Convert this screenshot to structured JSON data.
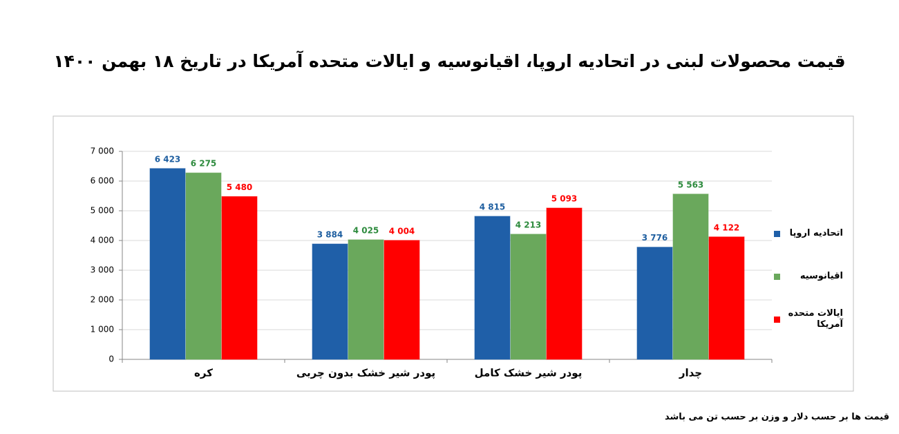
{
  "chart_data": {
    "type": "bar",
    "title": "قیمت محصولات لبنی در اتحادیه اروپا، اقیانوسیه و ایالات متحده آمریکا در تاریخ ۱۸ بهمن ۱۴۰۰",
    "footnote": "قیمت ها بر حسب دلار و وزن بر حسب تن می باشد",
    "categories": [
      "کره",
      "پودر شیر خشک بدون چربی",
      "پودر شیر خشک کامل",
      "چدار"
    ],
    "series": [
      {
        "name": "اتحادیه اروپا",
        "color": "#1f5fa8",
        "label_color": "#1f5fa0",
        "values": [
          6423,
          3884,
          4815,
          3776
        ],
        "value_labels": [
          "6 423",
          "3 884",
          "4 815",
          "3 776"
        ]
      },
      {
        "name": "اقیانوسیه",
        "color": "#6aa85c",
        "label_color": "#2e8b3e",
        "values": [
          6275,
          4025,
          4213,
          5563
        ],
        "value_labels": [
          "6 275",
          "4 025",
          "4 213",
          "5 563"
        ]
      },
      {
        "name": "ایالات متحده آمریکا",
        "color": "#ff0000",
        "label_color": "#ff0000",
        "values": [
          5480,
          4004,
          5093,
          4122
        ],
        "value_labels": [
          "5 480",
          "4 004",
          "5 093",
          "4 122"
        ]
      }
    ],
    "ylim": [
      0,
      7000
    ],
    "yticks": [
      0,
      {
        "value": 1000,
        "label": "1 000"
      },
      {
        "value": 2000,
        "label": "2 000"
      },
      {
        "value": 3000,
        "label": "3 000"
      },
      {
        "value": 4000,
        "label": "4 000"
      },
      {
        "value": 5000,
        "label": "5 000"
      },
      {
        "value": 6000,
        "label": "6 000"
      },
      {
        "value": 7000,
        "label": "7 000"
      }
    ],
    "grid": true
  }
}
